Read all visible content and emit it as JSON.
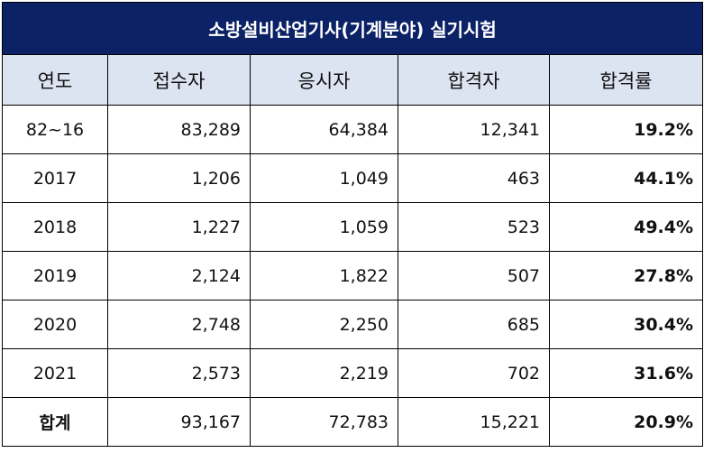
{
  "title": "소방설비산업기사(기계분야) 실기시험",
  "headers": [
    "연도",
    "접수자",
    "응시자",
    "합격자",
    "합격률"
  ],
  "rows": [
    {
      "year": "82~16",
      "applicants": "83,289",
      "examinees": "64,384",
      "passed": "12,341",
      "rate": "19.2%"
    },
    {
      "year": "2017",
      "applicants": "1,206",
      "examinees": "1,049",
      "passed": "463",
      "rate": "44.1%"
    },
    {
      "year": "2018",
      "applicants": "1,227",
      "examinees": "1,059",
      "passed": "523",
      "rate": "49.4%"
    },
    {
      "year": "2019",
      "applicants": "2,124",
      "examinees": "1,822",
      "passed": "507",
      "rate": "27.8%"
    },
    {
      "year": "2020",
      "applicants": "2,748",
      "examinees": "2,250",
      "passed": "685",
      "rate": "30.4%"
    },
    {
      "year": "2021",
      "applicants": "2,573",
      "examinees": "2,219",
      "passed": "702",
      "rate": "31.6%"
    },
    {
      "year": "합계",
      "applicants": "93,167",
      "examinees": "72,783",
      "passed": "15,221",
      "rate": "20.9%"
    }
  ],
  "colors": {
    "title_bg": "#0b2266",
    "header_bg": "#dce3f1"
  }
}
